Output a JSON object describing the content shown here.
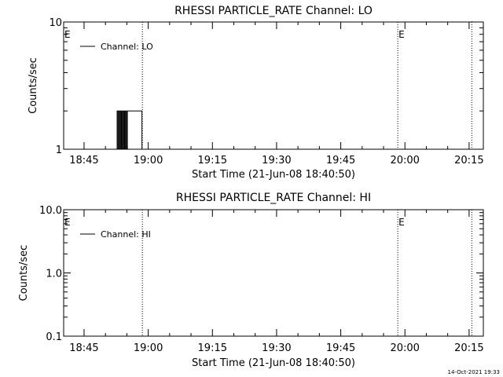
{
  "chart_data": [
    {
      "type": "line",
      "title": "RHESSI PARTICLE_RATE Channel: LO",
      "xlabel": "Start Time (21-Jun-08 18:40:50)",
      "ylabel": "Counts/sec",
      "yscale": "log",
      "ylim": [
        1,
        10
      ],
      "yticks": [
        1,
        10
      ],
      "ytick_labels": [
        "1",
        "10"
      ],
      "xlim_minutes": [
        -0.6,
        97.5
      ],
      "xticks_minutes": [
        4.17,
        19.17,
        34.17,
        49.17,
        64.17,
        79.17,
        94.17
      ],
      "xtick_labels": [
        "18:45",
        "19:00",
        "19:15",
        "19:30",
        "19:45",
        "20:00",
        "20:15"
      ],
      "legend": {
        "placement": "top-left",
        "entries": [
          "Channel: LO"
        ]
      },
      "event_markers": [
        {
          "label": "E",
          "minute": -0.6
        },
        {
          "label": "E",
          "minute": 77.5
        }
      ],
      "dotted_lines_minutes": [
        17.8,
        77.5,
        94.8
      ],
      "series": [
        {
          "name": "Channel: LO",
          "x": [
            11.7,
            11.9,
            12.1,
            12.3,
            12.5,
            12.7,
            12.9,
            13.1,
            13.3,
            13.5,
            13.7,
            13.9,
            14.1,
            14.3,
            14.5,
            17.5,
            17.7,
            18.0
          ],
          "values": [
            1,
            2,
            1,
            2,
            1,
            2,
            1,
            2,
            1,
            2,
            1,
            2,
            1,
            2,
            2,
            2,
            1,
            1
          ]
        }
      ]
    },
    {
      "type": "line",
      "title": "RHESSI PARTICLE_RATE Channel: HI",
      "xlabel": "Start Time (21-Jun-08 18:40:50)",
      "ylabel": "Counts/sec",
      "yscale": "log",
      "ylim": [
        0.1,
        10
      ],
      "yticks": [
        0.1,
        1,
        10
      ],
      "ytick_labels": [
        "0.1",
        "1.0",
        "10.0"
      ],
      "xlim_minutes": [
        -0.6,
        97.5
      ],
      "xticks_minutes": [
        4.17,
        19.17,
        34.17,
        49.17,
        64.17,
        79.17,
        94.17
      ],
      "xtick_labels": [
        "18:45",
        "19:00",
        "19:15",
        "19:30",
        "19:45",
        "20:00",
        "20:15"
      ],
      "legend": {
        "placement": "top-left",
        "entries": [
          "Channel: HI"
        ]
      },
      "event_markers": [
        {
          "label": "E",
          "minute": -0.6
        },
        {
          "label": "E",
          "minute": 77.5
        }
      ],
      "dotted_lines_minutes": [
        17.8,
        77.5,
        94.8
      ],
      "series": [
        {
          "name": "Channel: HI",
          "x": [],
          "values": []
        }
      ]
    }
  ],
  "footer": {
    "timestamp": "14-Oct-2021 19:33"
  }
}
